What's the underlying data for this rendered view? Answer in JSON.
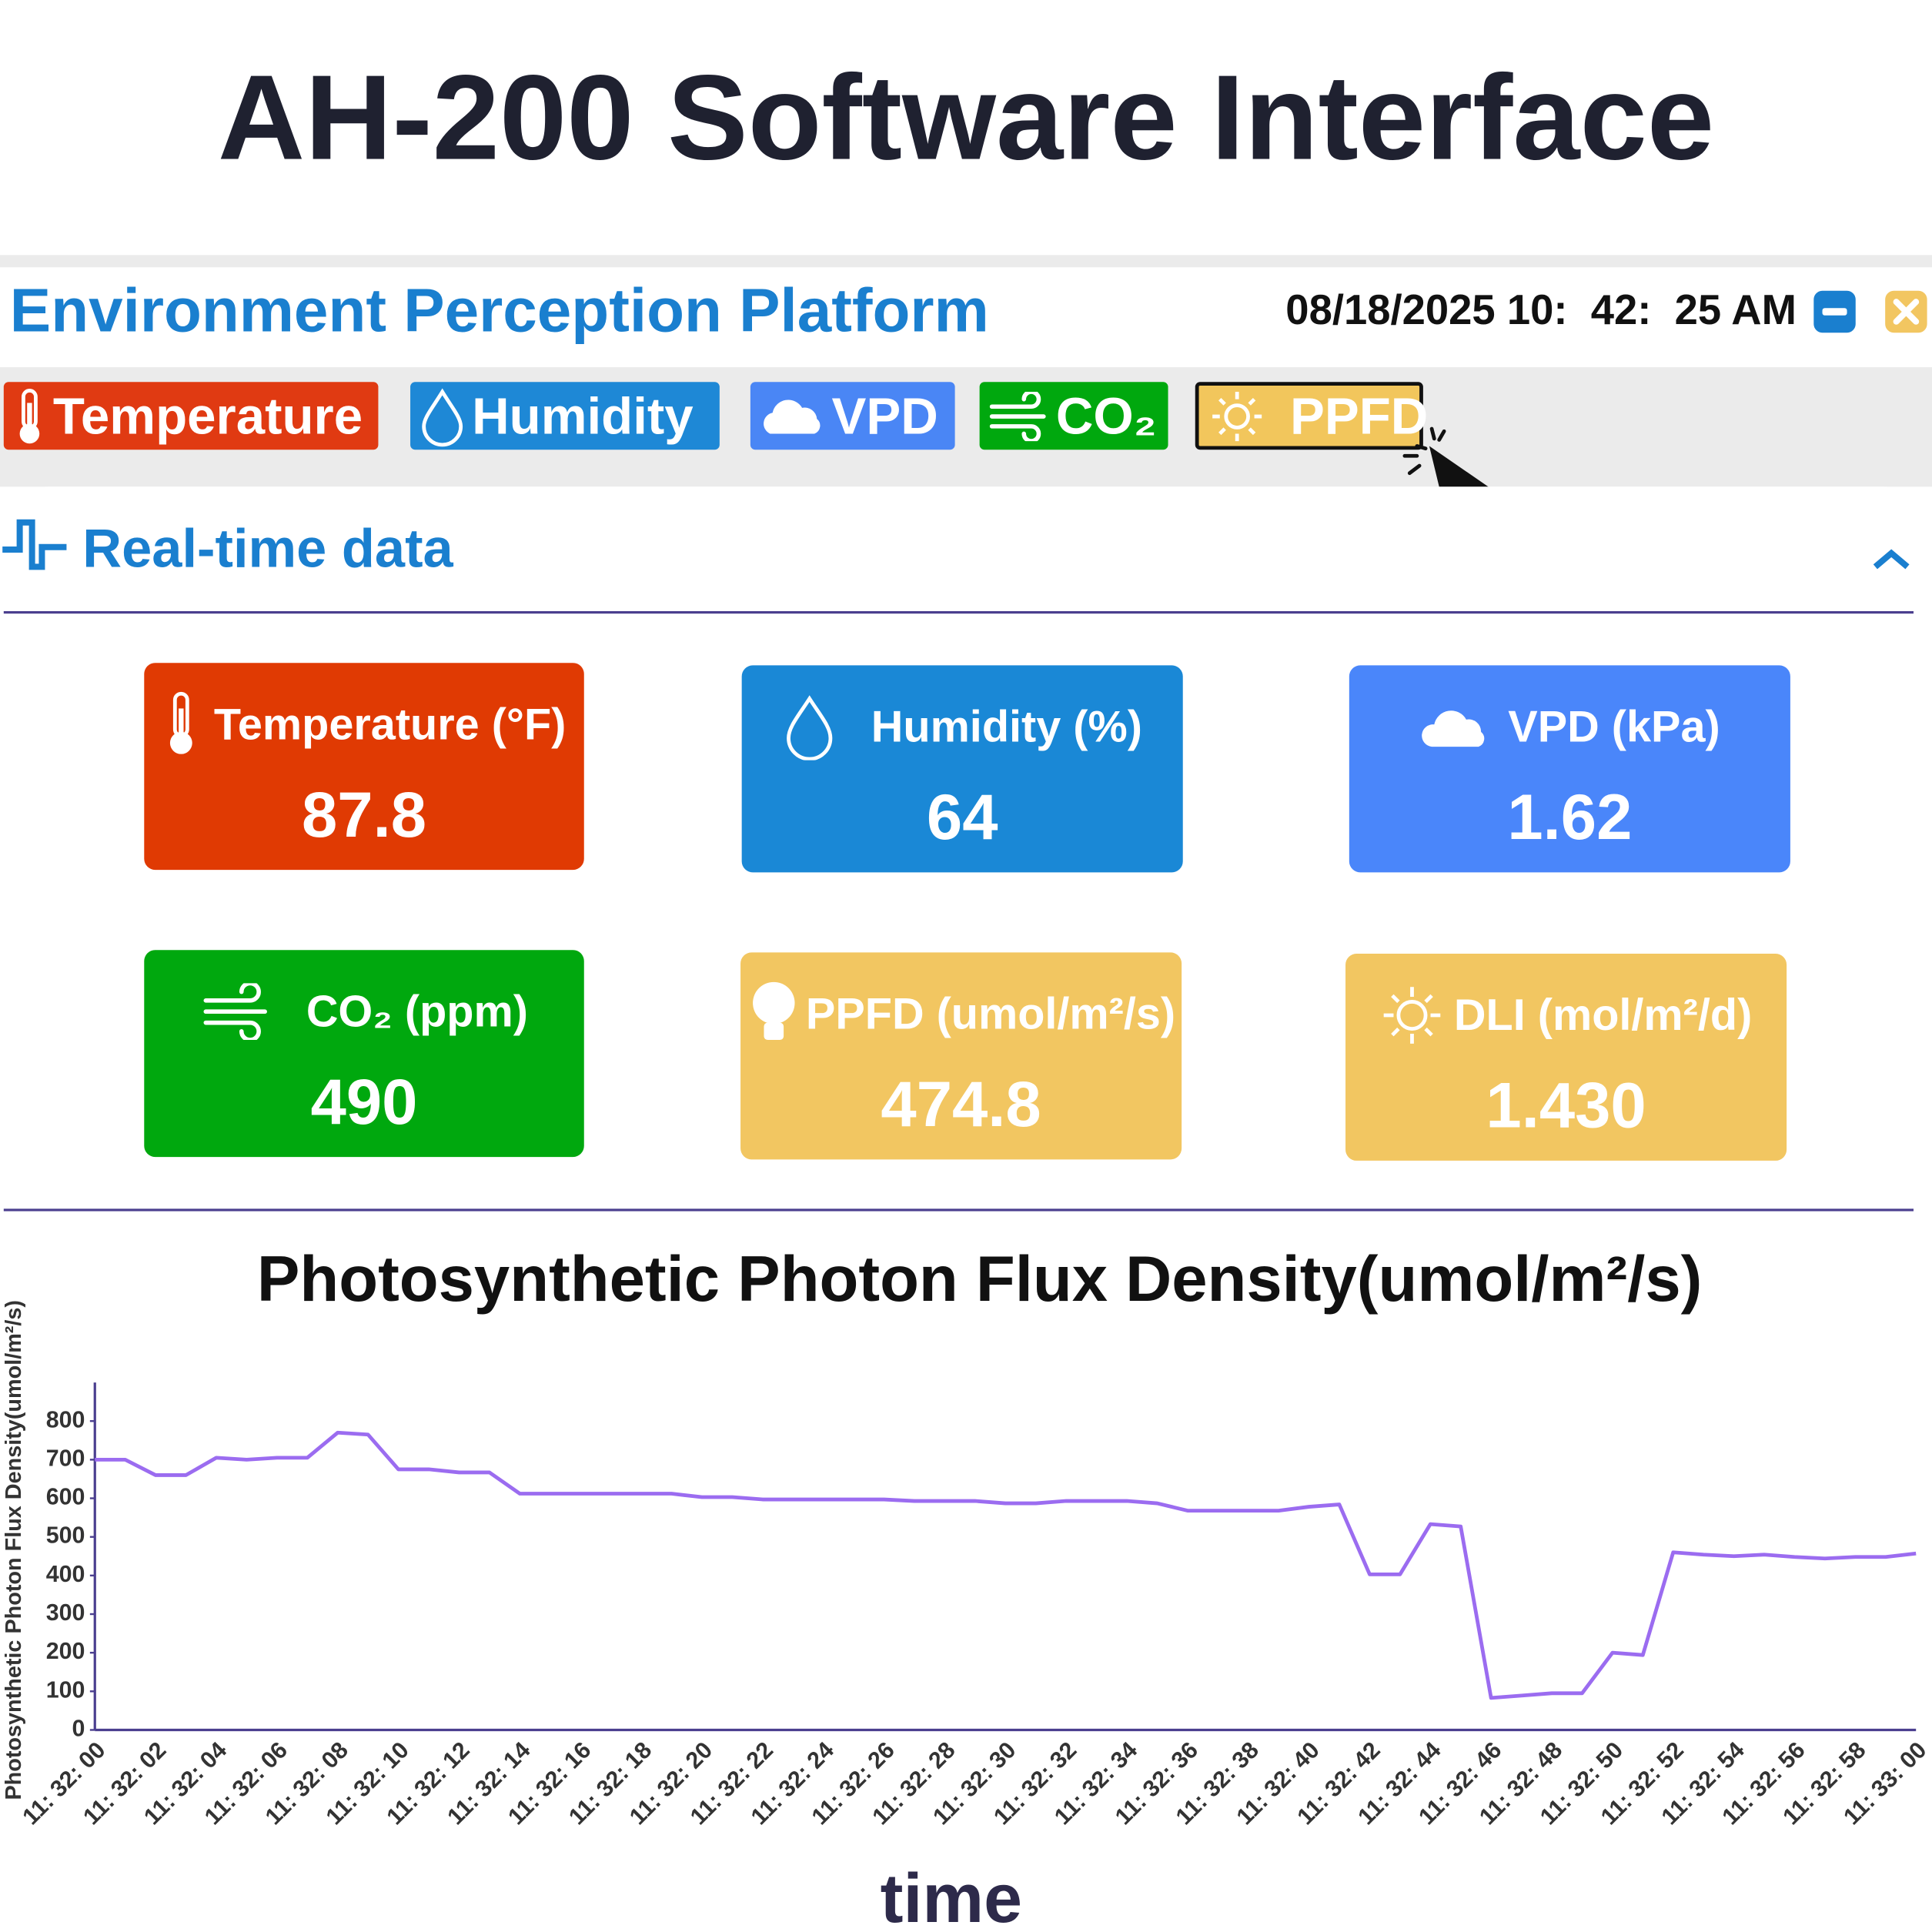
{
  "header": {
    "title": "AH-200 Software Interface"
  },
  "app_bar": {
    "title": "Environment Perception Platform",
    "datetime": "08/18/2025 10:  42:  25 AM"
  },
  "tabs": [
    "Temperature",
    "Humidity",
    "VPD",
    "CO₂",
    "PPFD"
  ],
  "section": {
    "title": "Real-time data"
  },
  "cards": [
    {
      "label": "Temperature (°F)",
      "value": "87.8"
    },
    {
      "label": "Humidity (%)",
      "value": "64"
    },
    {
      "label": "VPD (kPa)",
      "value": "1.62"
    },
    {
      "label": "CO₂ (ppm)",
      "value": "490"
    },
    {
      "label": "PPFD (umol/m²/s)",
      "value": "474.8"
    },
    {
      "label": "DLI (mol/m²/d)",
      "value": "1.430"
    }
  ],
  "chart_data": {
    "type": "line",
    "title": "Photosynthetic Photon Flux Density(umol/m²/s)",
    "x_label": "time",
    "y_label": "Photosynthetic Photon Flux Density(umol/m²/s)",
    "categories": [
      "11: 32: 00",
      null,
      "11: 32: 02",
      null,
      "11: 32: 04",
      null,
      "11: 32: 06",
      null,
      "11: 32: 08",
      null,
      "11: 32: 10",
      null,
      "11: 32: 12",
      null,
      "11: 32: 14",
      null,
      "11: 32: 16",
      null,
      "11: 32: 18",
      null,
      "11: 32: 20",
      null,
      "11: 32: 22",
      null,
      "11: 32: 24",
      null,
      "11: 32: 26",
      null,
      "11: 32: 28",
      null,
      "11: 32: 30",
      null,
      "11: 32: 32",
      null,
      "11: 32: 34",
      null,
      "11: 32: 36",
      null,
      "11: 32: 38",
      null,
      "11: 32: 40",
      null,
      "11: 32: 42",
      null,
      "11: 32: 44",
      null,
      "11: 32: 46",
      null,
      "11: 32: 48",
      null,
      "11: 32: 50",
      null,
      "11: 32: 52",
      null,
      "11: 32: 54",
      null,
      "11: 32: 56",
      null,
      "11: 32: 58",
      null,
      "11: 33: 00"
    ],
    "series": [
      {
        "color": "#9b6cf0",
        "values": [
          700,
          700,
          660,
          660,
          705,
          700,
          705,
          705,
          770,
          765,
          675,
          675,
          667,
          667,
          612,
          612,
          612,
          612,
          612,
          612,
          603,
          603,
          597,
          597,
          597,
          597,
          597,
          593,
          593,
          593,
          587,
          587,
          593,
          593,
          593,
          587,
          568,
          568,
          568,
          568,
          578,
          584,
          403,
          403,
          533,
          527,
          83,
          89,
          95,
          95,
          200,
          194,
          460,
          454,
          450,
          454,
          448,
          444,
          448,
          448,
          457
        ]
      }
    ],
    "ylim": [
      0,
      900
    ],
    "yticks": [
      0,
      100,
      200,
      300,
      400,
      500,
      600,
      700,
      800
    ],
    "grid": false
  }
}
